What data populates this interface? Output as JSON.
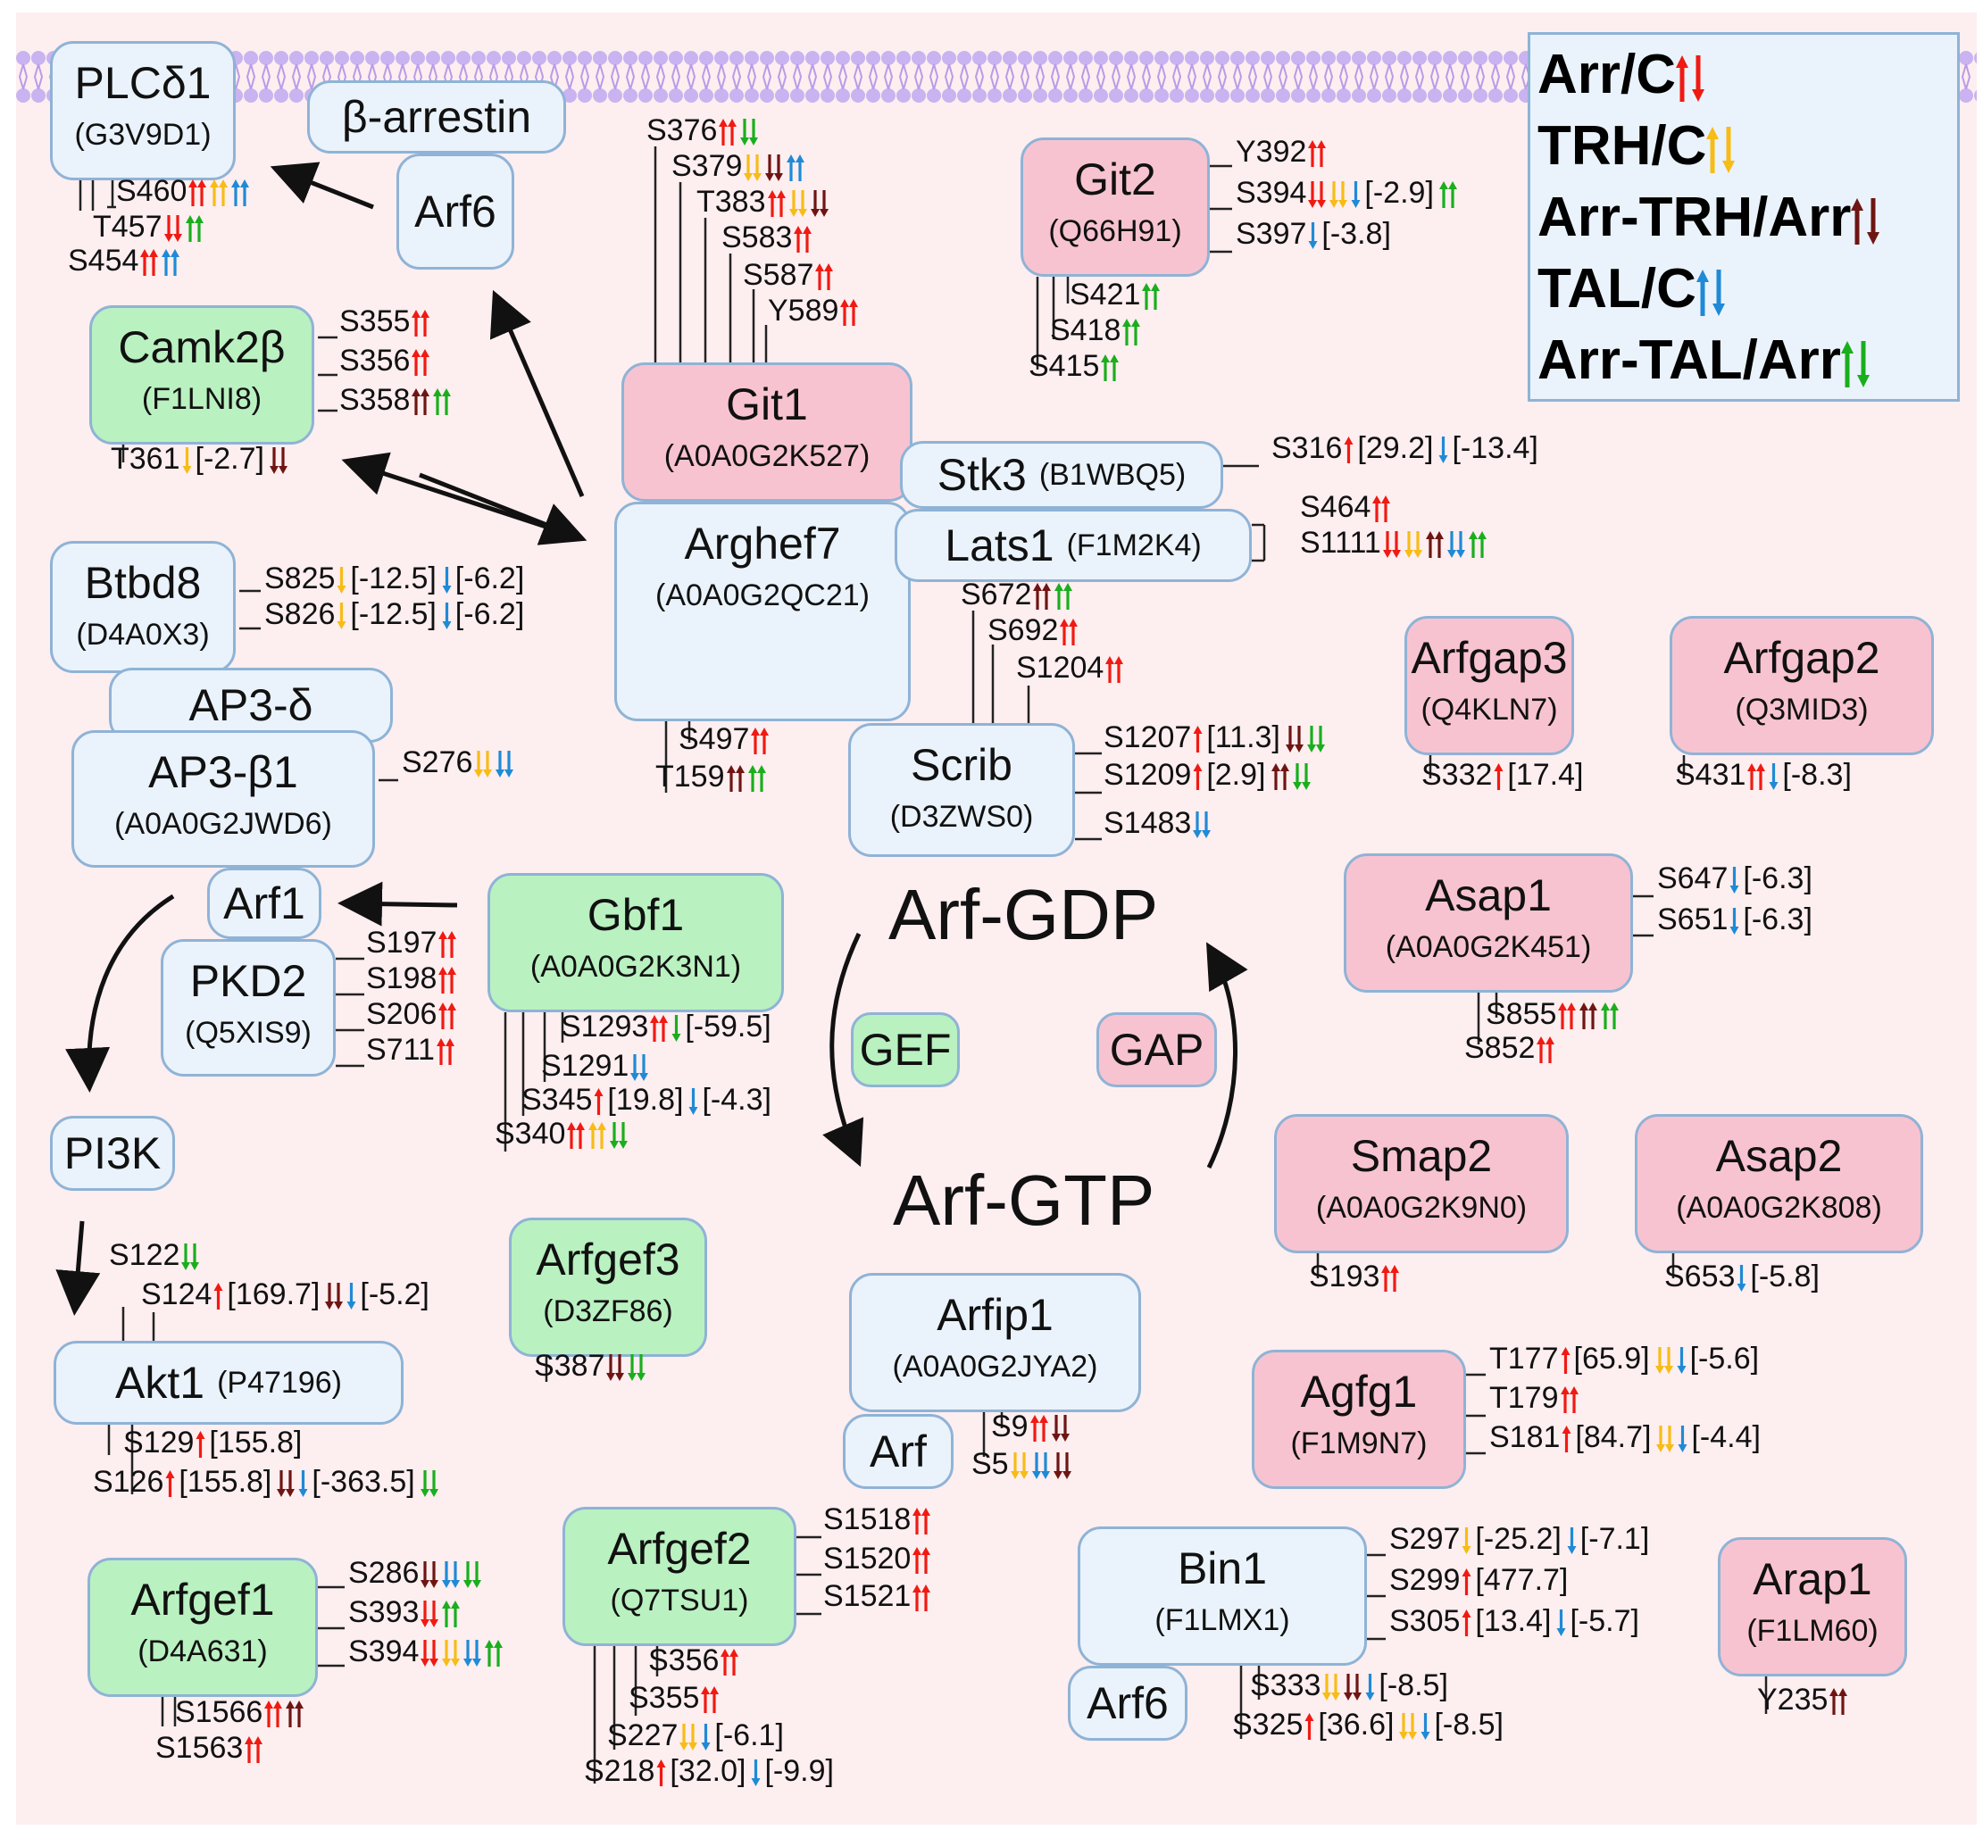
{
  "colors": {
    "arr_c": "#f01a12",
    "trh_c": "#f7bc16",
    "arr_trh_arr": "#6e1513",
    "tal_c": "#1f8ad6",
    "arr_tal_arr": "#1aae1d",
    "node_blue": "#eaf3fb",
    "node_pink": "#f8c3d0",
    "node_green": "#b9f1c0",
    "border": "#8fb3d6",
    "membrane": "#c9b3f0"
  },
  "legend": [
    {
      "label": "Arr/C",
      "color": "arr_c"
    },
    {
      "label": "TRH/C",
      "color": "trh_c"
    },
    {
      "label": "Arr-TRH/Arr",
      "color": "arr_trh_arr"
    },
    {
      "label": "TAL/C",
      "color": "tal_c"
    },
    {
      "label": "Arr-TAL/Arr",
      "color": "arr_tal_arr"
    }
  ],
  "cycle": {
    "gdp": "Arf-GDP",
    "gtp": "Arf-GTP",
    "gef": "GEF",
    "gap": "GAP"
  },
  "nodes": [
    {
      "id": "plcd1",
      "name": "PLCδ1",
      "acc": "(G3V9D1)",
      "color": "blue"
    },
    {
      "id": "barrestin",
      "name": "β-arrestin",
      "acc": "",
      "color": "blue"
    },
    {
      "id": "arf6a",
      "name": "Arf6",
      "acc": "",
      "color": "blue"
    },
    {
      "id": "camk2b",
      "name": "Camk2β",
      "acc": "(F1LNI8)",
      "color": "green"
    },
    {
      "id": "btbd8",
      "name": "Btbd8",
      "acc": "(D4A0X3)",
      "color": "blue"
    },
    {
      "id": "ap3d",
      "name": "AP3-δ",
      "acc": "",
      "color": "blue"
    },
    {
      "id": "ap3b1",
      "name": "AP3-β1",
      "acc": "(A0A0G2JWD6)",
      "color": "blue"
    },
    {
      "id": "arf1",
      "name": "Arf1",
      "acc": "",
      "color": "blue"
    },
    {
      "id": "pkd2",
      "name": "PKD2",
      "acc": "(Q5XIS9)",
      "color": "blue"
    },
    {
      "id": "pi3k",
      "name": "PI3K",
      "acc": "",
      "color": "blue"
    },
    {
      "id": "akt1",
      "name": "Akt1",
      "acc": "(P47196)",
      "color": "blue"
    },
    {
      "id": "arfgef1",
      "name": "Arfgef1",
      "acc": "(D4A631)",
      "color": "green"
    },
    {
      "id": "git1",
      "name": "Git1",
      "acc": "(A0A0G2K527)",
      "color": "pink"
    },
    {
      "id": "arghef7",
      "name": "Arghef7",
      "acc": "(A0A0G2QC21)",
      "color": "blue"
    },
    {
      "id": "stk3",
      "name": "Stk3",
      "acc": "(B1WBQ5)",
      "color": "blue"
    },
    {
      "id": "lats1",
      "name": "Lats1",
      "acc": "(F1M2K4)",
      "color": "blue"
    },
    {
      "id": "git2",
      "name": "Git2",
      "acc": "(Q66H91)",
      "color": "pink"
    },
    {
      "id": "scrib",
      "name": "Scrib",
      "acc": "(D3ZWS0)",
      "color": "blue"
    },
    {
      "id": "gbf1",
      "name": "Gbf1",
      "acc": "(A0A0G2K3N1)",
      "color": "green"
    },
    {
      "id": "arfgef3",
      "name": "Arfgef3",
      "acc": "(D3ZF86)",
      "color": "green"
    },
    {
      "id": "arfgef2",
      "name": "Arfgef2",
      "acc": "(Q7TSU1)",
      "color": "green"
    },
    {
      "id": "arfip1",
      "name": "Arfip1",
      "acc": "(A0A0G2JYA2)",
      "color": "blue"
    },
    {
      "id": "arfb",
      "name": "Arf",
      "acc": "",
      "color": "blue"
    },
    {
      "id": "arfgap3",
      "name": "Arfgap3",
      "acc": "(Q4KLN7)",
      "color": "pink"
    },
    {
      "id": "arfgap2",
      "name": "Arfgap2",
      "acc": "(Q3MID3)",
      "color": "pink"
    },
    {
      "id": "asap1",
      "name": "Asap1",
      "acc": "(A0A0G2K451)",
      "color": "pink"
    },
    {
      "id": "smap2",
      "name": "Smap2",
      "acc": "(A0A0G2K9N0)",
      "color": "pink"
    },
    {
      "id": "asap2",
      "name": "Asap2",
      "acc": "(A0A0G2K808)",
      "color": "pink"
    },
    {
      "id": "agfg1",
      "name": "Agfg1",
      "acc": "(F1M9N7)",
      "color": "pink"
    },
    {
      "id": "bin1",
      "name": "Bin1",
      "acc": "(F1LMX1)",
      "color": "blue"
    },
    {
      "id": "arf6b",
      "name": "Arf6",
      "acc": "",
      "color": "blue"
    },
    {
      "id": "arap1",
      "name": "Arap1",
      "acc": "(F1LM60)",
      "color": "pink"
    }
  ],
  "sites": [
    {
      "t": "S460",
      "m": [
        [
          "arr_c",
          "up",
          2
        ],
        [
          "trh_c",
          "up",
          2
        ],
        [
          "tal_c",
          "up",
          2
        ]
      ]
    },
    {
      "t": "T457",
      "m": [
        [
          "arr_c",
          "down",
          2
        ],
        [
          "arr_tal_arr",
          "up",
          2
        ]
      ]
    },
    {
      "t": "S454",
      "m": [
        [
          "arr_c",
          "up",
          2
        ],
        [
          "tal_c",
          "up",
          2
        ]
      ]
    },
    {
      "t": "S355",
      "m": [
        [
          "arr_c",
          "up",
          2
        ]
      ]
    },
    {
      "t": "S356",
      "m": [
        [
          "arr_c",
          "up",
          2
        ]
      ]
    },
    {
      "t": "S358",
      "m": [
        [
          "arr_trh_arr",
          "up",
          2
        ],
        [
          "arr_tal_arr",
          "up",
          2
        ]
      ]
    },
    {
      "t": "T361",
      "m": [
        [
          "trh_c",
          "down",
          1
        ],
        "[-2.7]",
        [
          "arr_trh_arr",
          "down",
          2
        ]
      ]
    },
    {
      "t": "S825",
      "m": [
        [
          "trh_c",
          "down",
          1
        ],
        "[-12.5]",
        [
          "tal_c",
          "down",
          1
        ],
        "[-6.2]"
      ]
    },
    {
      "t": "S826",
      "m": [
        [
          "trh_c",
          "down",
          1
        ],
        "[-12.5]",
        [
          "tal_c",
          "down",
          1
        ],
        "[-6.2]"
      ]
    },
    {
      "t": "S276",
      "m": [
        [
          "trh_c",
          "down",
          2
        ],
        [
          "tal_c",
          "down",
          2
        ]
      ]
    },
    {
      "t": "S197",
      "m": [
        [
          "arr_c",
          "up",
          2
        ]
      ]
    },
    {
      "t": "S198",
      "m": [
        [
          "arr_c",
          "up",
          2
        ]
      ]
    },
    {
      "t": "S206",
      "m": [
        [
          "arr_c",
          "up",
          2
        ]
      ]
    },
    {
      "t": "S711",
      "m": [
        [
          "arr_c",
          "up",
          2
        ]
      ]
    },
    {
      "t": "S122",
      "m": [
        [
          "arr_tal_arr",
          "down",
          2
        ]
      ]
    },
    {
      "t": "S124",
      "m": [
        [
          "arr_c",
          "up",
          1
        ],
        "[169.7]",
        [
          "arr_trh_arr",
          "down",
          2
        ],
        [
          "tal_c",
          "down",
          1
        ],
        "[-5.2]"
      ]
    },
    {
      "t": "S129",
      "m": [
        [
          "arr_c",
          "up",
          1
        ],
        "[155.8]"
      ]
    },
    {
      "t": "S126",
      "m": [
        [
          "arr_c",
          "up",
          1
        ],
        "[155.8]",
        [
          "arr_trh_arr",
          "down",
          2
        ],
        [
          "tal_c",
          "down",
          1
        ],
        "[-363.5]",
        [
          "arr_tal_arr",
          "down",
          2
        ]
      ]
    },
    {
      "t": "S286",
      "m": [
        [
          "arr_trh_arr",
          "down",
          2
        ],
        [
          "tal_c",
          "down",
          2
        ],
        [
          "arr_tal_arr",
          "down",
          2
        ]
      ]
    },
    {
      "t": "S393",
      "m": [
        [
          "arr_c",
          "down",
          2
        ],
        [
          "arr_tal_arr",
          "up",
          2
        ]
      ]
    },
    {
      "t": "S394",
      "m": [
        [
          "arr_c",
          "down",
          2
        ],
        [
          "trh_c",
          "down",
          2
        ],
        [
          "tal_c",
          "down",
          2
        ],
        [
          "arr_tal_arr",
          "up",
          2
        ]
      ]
    },
    {
      "t": "S1566",
      "m": [
        [
          "arr_c",
          "up",
          2
        ],
        [
          "arr_trh_arr",
          "up",
          2
        ]
      ]
    },
    {
      "t": "S1563",
      "m": [
        [
          "arr_c",
          "up",
          2
        ]
      ]
    },
    {
      "t": "S376",
      "m": [
        [
          "arr_c",
          "up",
          2
        ],
        [
          "arr_tal_arr",
          "down",
          2
        ]
      ]
    },
    {
      "t": "S379",
      "m": [
        [
          "trh_c",
          "down",
          2
        ],
        [
          "arr_trh_arr",
          "down",
          2
        ],
        [
          "tal_c",
          "up",
          2
        ]
      ]
    },
    {
      "t": "T383",
      "m": [
        [
          "arr_c",
          "up",
          2
        ],
        [
          "trh_c",
          "down",
          2
        ],
        [
          "arr_trh_arr",
          "down",
          2
        ]
      ]
    },
    {
      "t": "S583",
      "m": [
        [
          "arr_c",
          "up",
          2
        ]
      ]
    },
    {
      "t": "S587",
      "m": [
        [
          "arr_c",
          "up",
          2
        ]
      ]
    },
    {
      "t": "Y589",
      "m": [
        [
          "arr_c",
          "up",
          2
        ]
      ]
    },
    {
      "t": "Y392",
      "m": [
        [
          "arr_c",
          "up",
          2
        ]
      ]
    },
    {
      "t": "S394",
      "m": [
        [
          "arr_c",
          "down",
          2
        ],
        [
          "trh_c",
          "down",
          2
        ],
        [
          "tal_c",
          "down",
          1
        ],
        "[-2.9]",
        [
          "arr_tal_arr",
          "up",
          2
        ]
      ]
    },
    {
      "t": "S397",
      "m": [
        [
          "tal_c",
          "down",
          1
        ],
        "[-3.8]"
      ]
    },
    {
      "t": "S421",
      "m": [
        [
          "arr_tal_arr",
          "up",
          2
        ]
      ]
    },
    {
      "t": "S418",
      "m": [
        [
          "arr_tal_arr",
          "up",
          2
        ]
      ]
    },
    {
      "t": "S415",
      "m": [
        [
          "arr_tal_arr",
          "up",
          2
        ]
      ]
    },
    {
      "t": "S316",
      "m": [
        [
          "arr_c",
          "up",
          1
        ],
        "[29.2]",
        [
          "tal_c",
          "down",
          1
        ],
        "[-13.4]"
      ]
    },
    {
      "t": "S464",
      "m": [
        [
          "arr_c",
          "up",
          2
        ]
      ]
    },
    {
      "t": "S1111",
      "m": [
        [
          "arr_c",
          "down",
          2
        ],
        [
          "trh_c",
          "down",
          2
        ],
        [
          "arr_trh_arr",
          "up",
          2
        ],
        [
          "tal_c",
          "down",
          2
        ],
        [
          "arr_tal_arr",
          "up",
          2
        ]
      ]
    },
    {
      "t": "S497",
      "m": [
        [
          "arr_c",
          "up",
          2
        ]
      ]
    },
    {
      "t": "T159",
      "m": [
        [
          "arr_trh_arr",
          "up",
          2
        ],
        [
          "arr_tal_arr",
          "up",
          2
        ]
      ]
    },
    {
      "t": "S672",
      "m": [
        [
          "arr_trh_arr",
          "up",
          2
        ],
        [
          "arr_tal_arr",
          "up",
          2
        ]
      ]
    },
    {
      "t": "S692",
      "m": [
        [
          "arr_c",
          "up",
          2
        ]
      ]
    },
    {
      "t": "S1204",
      "m": [
        [
          "arr_c",
          "up",
          2
        ]
      ]
    },
    {
      "t": "S1207",
      "m": [
        [
          "arr_c",
          "up",
          1
        ],
        "[11.3]",
        [
          "arr_trh_arr",
          "down",
          2
        ],
        [
          "arr_tal_arr",
          "down",
          2
        ]
      ]
    },
    {
      "t": "S1209",
      "m": [
        [
          "arr_c",
          "up",
          1
        ],
        "[2.9]",
        [
          "arr_trh_arr",
          "up",
          2
        ],
        [
          "arr_tal_arr",
          "down",
          2
        ]
      ]
    },
    {
      "t": "S1483",
      "m": [
        [
          "tal_c",
          "down",
          2
        ]
      ]
    },
    {
      "t": "S1293",
      "m": [
        [
          "arr_c",
          "up",
          2
        ],
        [
          "arr_tal_arr",
          "down",
          1
        ],
        "[-59.5]"
      ]
    },
    {
      "t": "S1291",
      "m": [
        [
          "tal_c",
          "down",
          2
        ]
      ]
    },
    {
      "t": "S345",
      "m": [
        [
          "arr_c",
          "up",
          1
        ],
        "[19.8]",
        [
          "tal_c",
          "down",
          1
        ],
        "[-4.3]"
      ]
    },
    {
      "t": "S340",
      "m": [
        [
          "arr_c",
          "up",
          2
        ],
        [
          "trh_c",
          "up",
          2
        ],
        [
          "arr_tal_arr",
          "down",
          2
        ]
      ]
    },
    {
      "t": "S387",
      "m": [
        [
          "arr_trh_arr",
          "down",
          2
        ],
        [
          "arr_tal_arr",
          "down",
          2
        ]
      ]
    },
    {
      "t": "S1518",
      "m": [
        [
          "arr_c",
          "up",
          2
        ]
      ]
    },
    {
      "t": "S1520",
      "m": [
        [
          "arr_c",
          "up",
          2
        ]
      ]
    },
    {
      "t": "S1521",
      "m": [
        [
          "arr_c",
          "up",
          2
        ]
      ]
    },
    {
      "t": "S356",
      "m": [
        [
          "arr_c",
          "up",
          2
        ]
      ]
    },
    {
      "t": "S355",
      "m": [
        [
          "arr_c",
          "up",
          2
        ]
      ]
    },
    {
      "t": "S227",
      "m": [
        [
          "trh_c",
          "down",
          2
        ],
        [
          "tal_c",
          "down",
          1
        ],
        "[-6.1]"
      ]
    },
    {
      "t": "S218",
      "m": [
        [
          "arr_c",
          "up",
          1
        ],
        "[32.0]",
        [
          "tal_c",
          "down",
          1
        ],
        "[-9.9]"
      ]
    },
    {
      "t": "S9",
      "m": [
        [
          "arr_c",
          "up",
          2
        ],
        [
          "arr_trh_arr",
          "down",
          2
        ]
      ]
    },
    {
      "t": "S5",
      "m": [
        [
          "trh_c",
          "down",
          2
        ],
        [
          "tal_c",
          "down",
          2
        ],
        [
          "arr_trh_arr",
          "down",
          2
        ]
      ]
    },
    {
      "t": "S332",
      "m": [
        [
          "arr_c",
          "up",
          1
        ],
        "[17.4]"
      ]
    },
    {
      "t": "S431",
      "m": [
        [
          "arr_c",
          "up",
          2
        ],
        [
          "tal_c",
          "down",
          1
        ],
        "[-8.3]"
      ]
    },
    {
      "t": "S647",
      "m": [
        [
          "tal_c",
          "down",
          1
        ],
        "[-6.3]"
      ]
    },
    {
      "t": "S651",
      "m": [
        [
          "tal_c",
          "down",
          1
        ],
        "[-6.3]"
      ]
    },
    {
      "t": "S855",
      "m": [
        [
          "arr_c",
          "up",
          2
        ],
        [
          "arr_trh_arr",
          "up",
          2
        ],
        [
          "arr_tal_arr",
          "up",
          2
        ]
      ]
    },
    {
      "t": "S852",
      "m": [
        [
          "arr_c",
          "up",
          2
        ]
      ]
    },
    {
      "t": "S193",
      "m": [
        [
          "arr_c",
          "up",
          2
        ]
      ]
    },
    {
      "t": "S653",
      "m": [
        [
          "tal_c",
          "down",
          1
        ],
        "[-5.8]"
      ]
    },
    {
      "t": "T177",
      "m": [
        [
          "arr_c",
          "up",
          1
        ],
        "[65.9]",
        [
          "trh_c",
          "down",
          2
        ],
        [
          "tal_c",
          "down",
          1
        ],
        "[-5.6]"
      ]
    },
    {
      "t": "T179",
      "m": [
        [
          "arr_c",
          "up",
          2
        ]
      ]
    },
    {
      "t": "S181",
      "m": [
        [
          "arr_c",
          "up",
          1
        ],
        "[84.7]",
        [
          "trh_c",
          "down",
          2
        ],
        [
          "tal_c",
          "down",
          1
        ],
        "[-4.4]"
      ]
    },
    {
      "t": "S297",
      "m": [
        [
          "trh_c",
          "down",
          1
        ],
        "[-25.2]",
        [
          "tal_c",
          "down",
          1
        ],
        "[-7.1]"
      ]
    },
    {
      "t": "S299",
      "m": [
        [
          "arr_c",
          "up",
          1
        ],
        "[477.7]"
      ]
    },
    {
      "t": "S305",
      "m": [
        [
          "arr_c",
          "up",
          1
        ],
        "[13.4]",
        [
          "tal_c",
          "down",
          1
        ],
        "[-5.7]"
      ]
    },
    {
      "t": "S333",
      "m": [
        [
          "trh_c",
          "down",
          2
        ],
        [
          "arr_trh_arr",
          "down",
          2
        ],
        [
          "tal_c",
          "down",
          1
        ],
        "[-8.5]"
      ]
    },
    {
      "t": "S325",
      "m": [
        [
          "arr_c",
          "up",
          1
        ],
        "[36.6]",
        [
          "trh_c",
          "down",
          2
        ],
        [
          "tal_c",
          "down",
          1
        ],
        "[-8.5]"
      ]
    },
    {
      "t": "Y235",
      "m": [
        [
          "arr_trh_arr",
          "up",
          2
        ]
      ]
    }
  ]
}
